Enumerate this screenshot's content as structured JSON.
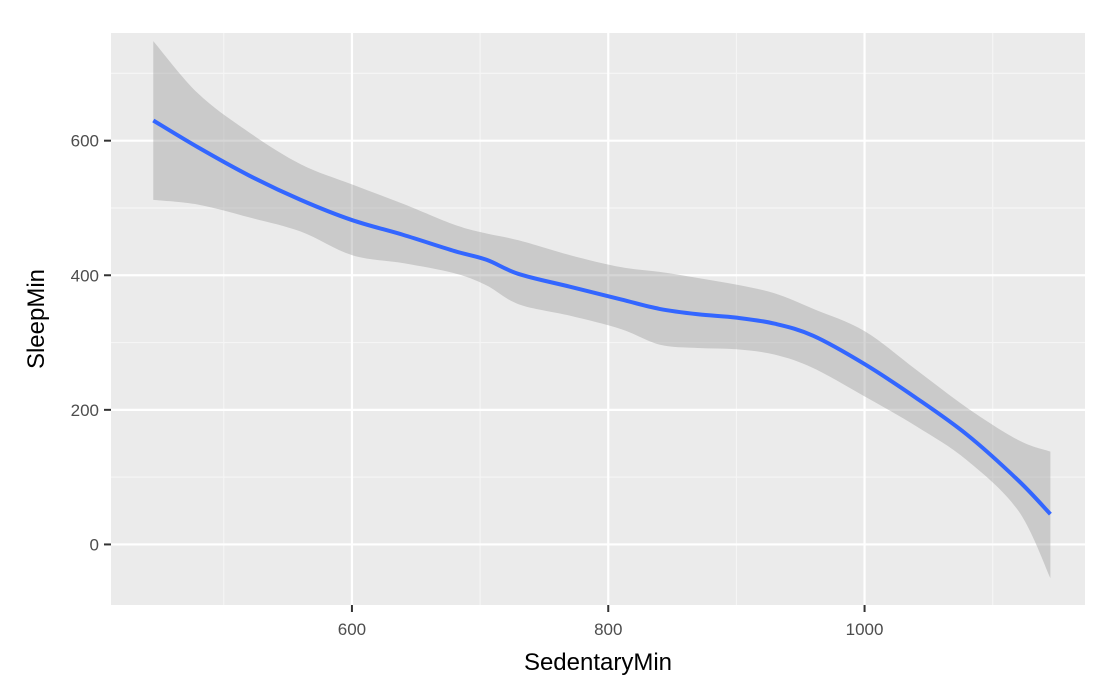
{
  "chart_data": {
    "type": "line",
    "title": "",
    "xlabel": "SedentaryMin",
    "ylabel": "SleepMin",
    "xlim": [
      412,
      1172
    ],
    "ylim": [
      -90,
      760
    ],
    "x_ticks": [
      600,
      800,
      1000
    ],
    "x_tick_labels": [
      "600",
      "800",
      "1000"
    ],
    "y_ticks": [
      0,
      200,
      400,
      600
    ],
    "y_tick_labels": [
      "0",
      "200",
      "400",
      "600"
    ],
    "x_minor_ticks": [
      500,
      700,
      900,
      1100
    ],
    "y_minor_ticks": [
      100,
      300,
      500,
      700
    ],
    "grid": true,
    "legend": "none",
    "series": [
      {
        "name": "smooth fit",
        "style": "line",
        "x": [
          445,
          480,
          520,
          560,
          600,
          640,
          680,
          705,
          730,
          770,
          810,
          840,
          870,
          900,
          930,
          960,
          1000,
          1040,
          1080,
          1120,
          1145
        ],
        "y": [
          630,
          590,
          548,
          512,
          482,
          460,
          436,
          423,
          402,
          383,
          364,
          350,
          342,
          337,
          328,
          310,
          268,
          218,
          163,
          95,
          45
        ]
      },
      {
        "name": "95% confidence band",
        "style": "ribbon",
        "x": [
          445,
          480,
          520,
          560,
          600,
          640,
          680,
          705,
          730,
          770,
          810,
          840,
          870,
          900,
          930,
          960,
          1000,
          1040,
          1080,
          1120,
          1145
        ],
        "lower": [
          512,
          505,
          486,
          465,
          430,
          418,
          403,
          385,
          357,
          340,
          320,
          297,
          292,
          290,
          282,
          262,
          220,
          176,
          125,
          50,
          -50
        ],
        "upper": [
          748,
          670,
          612,
          565,
          535,
          506,
          475,
          462,
          452,
          430,
          412,
          405,
          396,
          386,
          373,
          350,
          317,
          260,
          203,
          155,
          138
        ]
      }
    ],
    "colors": {
      "panel_background": "#ebebeb",
      "grid_major": "#ffffff",
      "grid_minor": "#f5f5f5",
      "line": "#3366ff",
      "ribbon": "#999999"
    }
  }
}
